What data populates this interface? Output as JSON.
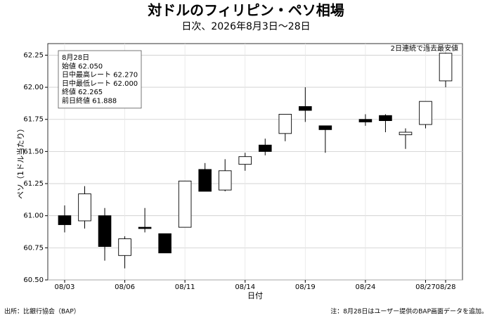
{
  "chart_data": {
    "type": "candlestick",
    "title": "対ドルのフィリピン・ペソ相場",
    "subtitle": "日次、2026年8月3日〜28日",
    "x_label": "日付",
    "y_label": "ペソ（1ドル当たり）",
    "categories": [
      "08/03",
      null,
      null,
      "08/06",
      null,
      null,
      "08/11",
      null,
      null,
      "08/14",
      null,
      null,
      "08/19",
      null,
      null,
      "08/24",
      null,
      null,
      "08/27",
      "08/28"
    ],
    "open": [
      61.0,
      60.96,
      61.0,
      60.69,
      60.91,
      60.86,
      60.91,
      61.36,
      61.2,
      61.4,
      61.55,
      61.64,
      61.85,
      61.7,
      null,
      61.75,
      61.78,
      61.63,
      61.71,
      62.05
    ],
    "high": [
      61.08,
      61.23,
      61.06,
      60.84,
      61.06,
      60.86,
      61.27,
      61.41,
      61.44,
      61.49,
      61.6,
      61.79,
      62.0,
      61.7,
      null,
      61.79,
      61.79,
      61.68,
      61.89,
      62.27
    ],
    "low": [
      60.87,
      60.9,
      60.65,
      60.59,
      60.87,
      60.71,
      60.91,
      61.19,
      61.19,
      61.35,
      61.47,
      61.58,
      61.73,
      61.49,
      null,
      61.7,
      61.65,
      61.52,
      61.68,
      62.0
    ],
    "close": [
      60.93,
      61.17,
      60.76,
      60.82,
      60.9,
      60.71,
      61.27,
      61.19,
      61.35,
      61.46,
      61.5,
      61.79,
      61.82,
      61.67,
      null,
      61.73,
      61.74,
      61.65,
      61.89,
      62.265
    ],
    "up_color": "#ffffff",
    "down_color": "#000000",
    "edge_color": "#000000",
    "ylim": [
      60.5,
      62.34
    ],
    "yticks": [
      {
        "value": 60.5,
        "label": "60.50"
      },
      {
        "value": 60.75,
        "label": "60.75"
      },
      {
        "value": 61.0,
        "label": "61.00"
      },
      {
        "value": 61.25,
        "label": "61.25"
      },
      {
        "value": 61.5,
        "label": "61.50"
      },
      {
        "value": 61.75,
        "label": "61.75"
      },
      {
        "value": 62.0,
        "label": "62.00"
      },
      {
        "value": 62.25,
        "label": "62.25"
      }
    ],
    "grid": true,
    "info_box": [
      "8月28日",
      "始値 62.050",
      "日中最高レート 62.270",
      "日中最低レート 62.000",
      "終値 62.265",
      "前日終値 61.888"
    ],
    "annotation": "2日連続で過去最安値",
    "source": "出所：比銀行協会（BAP）",
    "note": "注：8月28日はユーザー提供のBAP画面データを追加。"
  }
}
